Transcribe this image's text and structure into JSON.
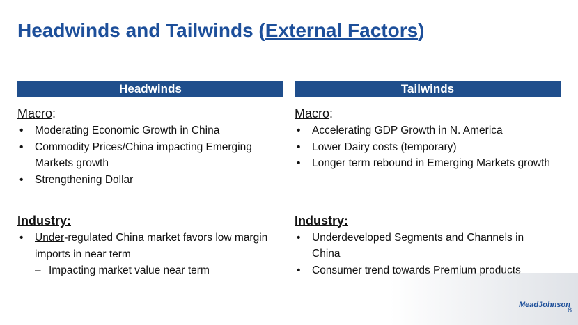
{
  "title": {
    "before": "Headwinds and Tailwinds (",
    "underlined": "External Factors",
    "after": ")"
  },
  "headwinds": {
    "header": "Headwinds",
    "macro": {
      "label": "Macro",
      "colon": ":",
      "items": [
        "Moderating Economic Growth in China",
        "Commodity Prices/China impacting Emerging Markets growth",
        "Strengthening Dollar"
      ]
    },
    "industry": {
      "label": "Industry:",
      "item": {
        "underlined": "Under",
        "rest": "-regulated China market favors low margin imports in near term"
      },
      "sub_item": "Impacting market value near term"
    }
  },
  "tailwinds": {
    "header": "Tailwinds",
    "macro": {
      "label": "Macro",
      "colon": ":",
      "items": [
        "Accelerating GDP Growth in N. America",
        "Lower Dairy costs (temporary)",
        "Longer term rebound in Emerging Markets growth"
      ]
    },
    "industry": {
      "label": "Industry:",
      "items": [
        "Underdeveloped Segments and Channels in China",
        "Consumer trend towards Premium products"
      ]
    }
  },
  "logo": "MeadJohnson",
  "page_number": "8"
}
